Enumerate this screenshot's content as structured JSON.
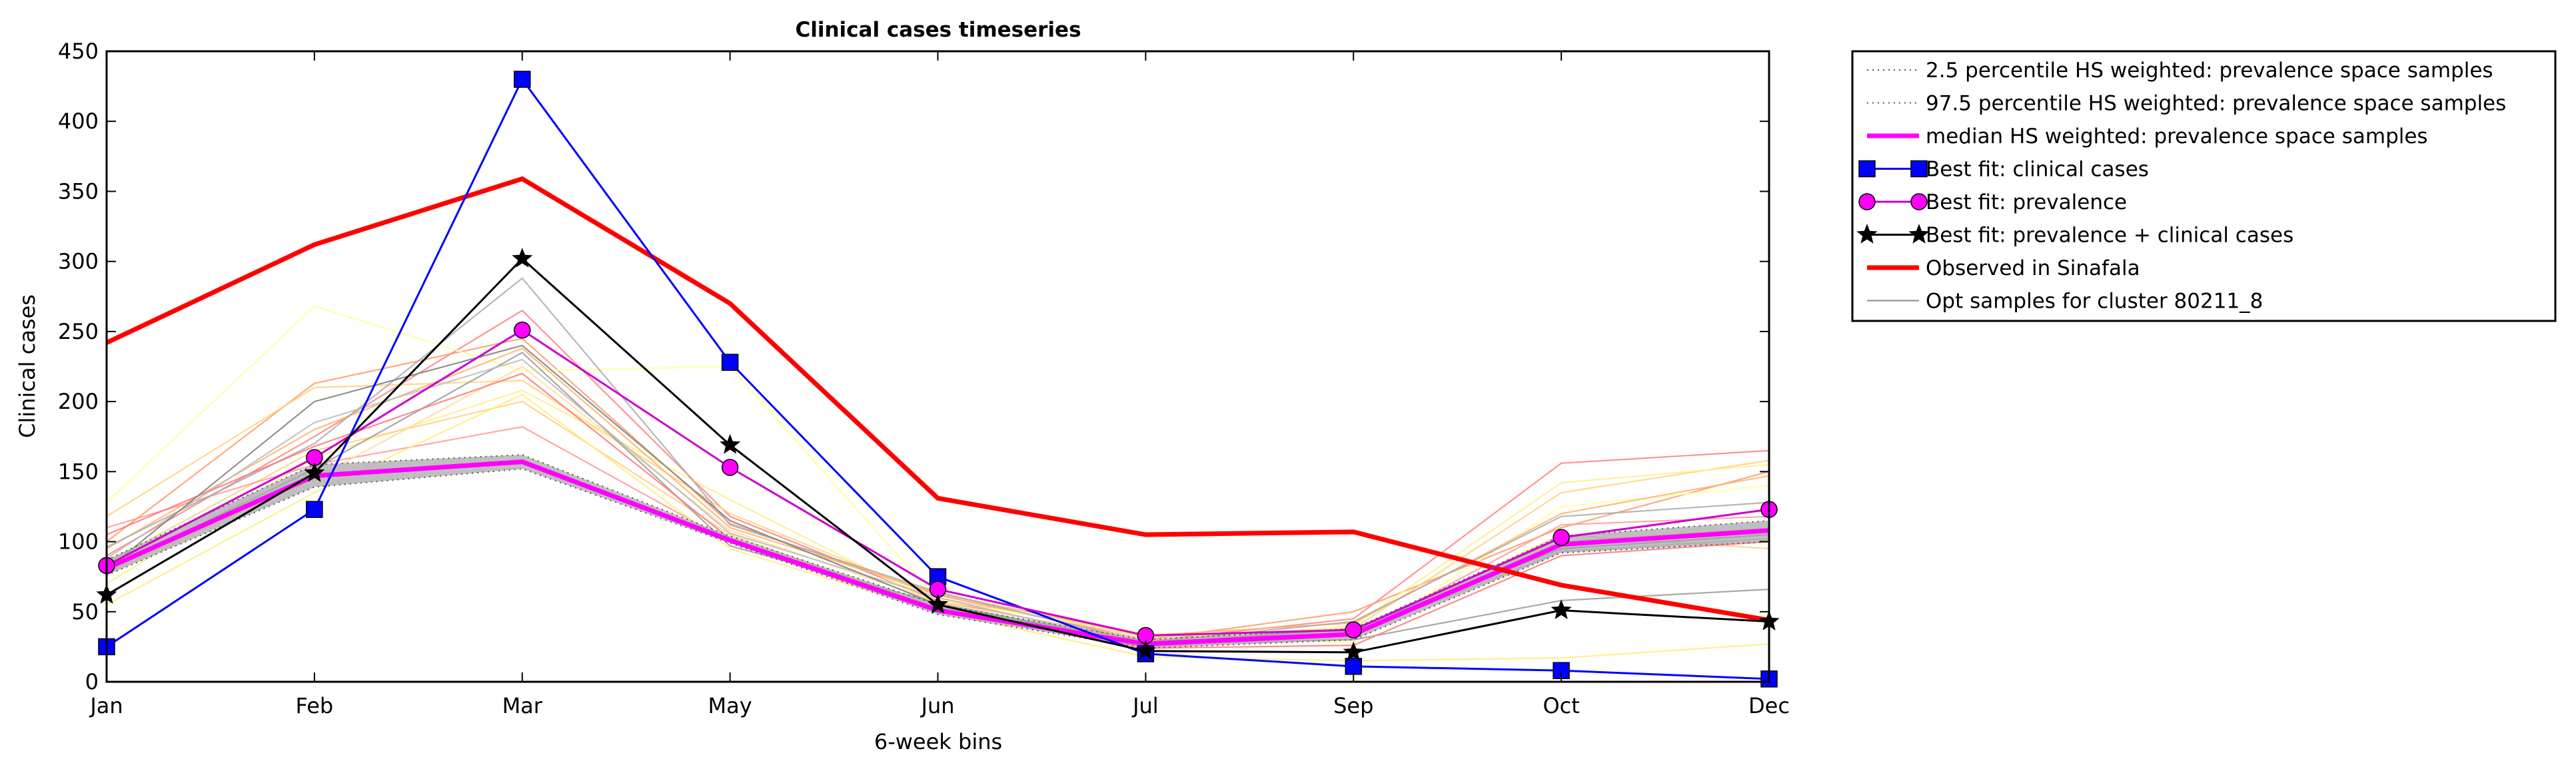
{
  "chart_data": {
    "type": "line",
    "title": "Clinical cases timeseries",
    "xlabel": "6-week bins",
    "ylabel": "Clinical cases",
    "categories": [
      "Jan",
      "Feb",
      "Mar",
      "May",
      "Jun",
      "Jul",
      "Sep",
      "Oct",
      "Dec"
    ],
    "ylim": [
      0,
      450
    ],
    "yticks": [
      0,
      50,
      100,
      150,
      200,
      250,
      300,
      350,
      400,
      450
    ],
    "grid": false,
    "legend_position": "outside-right",
    "series": [
      {
        "name": "2.5 percentile HS weighted: prevalence space samples",
        "color": "#555555",
        "style": "dotted",
        "values": [
          76,
          139,
          152,
          99,
          48,
          24,
          30,
          92,
          100
        ]
      },
      {
        "name": "97.5 percentile HS weighted: prevalence space samples",
        "color": "#555555",
        "style": "dotted",
        "values": [
          87,
          155,
          162,
          104,
          55,
          30,
          38,
          104,
          115
        ]
      },
      {
        "name": "median HS weighted: prevalence space samples",
        "color": "#ff00ff",
        "style": "solid",
        "values": [
          81,
          147,
          157,
          101,
          51,
          27,
          34,
          98,
          108
        ]
      },
      {
        "name": "Best fit: clinical cases",
        "color": "#0000ff",
        "style": "solid",
        "marker": "square",
        "values": [
          25,
          123,
          430,
          228,
          75,
          20,
          11,
          8,
          2
        ]
      },
      {
        "name": "Best fit: prevalence",
        "color": "#cc00cc",
        "style": "solid",
        "marker": "circle",
        "values": [
          83,
          160,
          251,
          153,
          66,
          33,
          37,
          103,
          123
        ]
      },
      {
        "name": "Best fit: prevalence + clinical cases",
        "color": "#000000",
        "style": "solid",
        "marker": "star",
        "values": [
          62,
          149,
          302,
          169,
          55,
          22,
          21,
          51,
          43
        ]
      },
      {
        "name": "Observed in Sinafala",
        "color": "#ff0000",
        "style": "solid",
        "values": [
          242,
          312,
          359,
          270,
          131,
          105,
          107,
          69,
          44
        ]
      },
      {
        "name": "Opt samples for cluster 80211_8",
        "color": "#888888",
        "style": "solid",
        "values": [
          80,
          200,
          240,
          115,
          55,
          27,
          38,
          95,
          105
        ]
      }
    ],
    "sample_lines": [
      {
        "color": "#ff8080",
        "values": [
          90,
          175,
          265,
          118,
          58,
          29,
          45,
          156,
          165
        ]
      },
      {
        "color": "#ff9966",
        "values": [
          100,
          213,
          245,
          113,
          62,
          30,
          50,
          110,
          150
        ]
      },
      {
        "color": "#ffd27a",
        "values": [
          118,
          210,
          215,
          120,
          60,
          32,
          38,
          135,
          158
        ]
      },
      {
        "color": "#ffff99",
        "values": [
          128,
          268,
          222,
          225,
          58,
          35,
          28,
          125,
          140
        ]
      },
      {
        "color": "#ffee88",
        "values": [
          70,
          160,
          208,
          130,
          55,
          28,
          40,
          142,
          155
        ]
      },
      {
        "color": "#ffb366",
        "values": [
          95,
          180,
          238,
          110,
          63,
          33,
          42,
          120,
          147
        ]
      },
      {
        "color": "#ffcc88",
        "values": [
          85,
          165,
          200,
          105,
          52,
          27,
          35,
          105,
          95
        ]
      },
      {
        "color": "#ff9999",
        "values": [
          110,
          155,
          182,
          100,
          50,
          25,
          33,
          112,
          118
        ]
      },
      {
        "color": "#ffdd99",
        "values": [
          78,
          145,
          225,
          108,
          57,
          30,
          36,
          100,
          110
        ]
      },
      {
        "color": "#aaaaaa",
        "values": [
          96,
          170,
          288,
          112,
          64,
          28,
          43,
          118,
          128
        ]
      },
      {
        "color": "#999999",
        "values": [
          80,
          152,
          235,
          97,
          56,
          27,
          30,
          58,
          66
        ]
      },
      {
        "color": "#bbbbbb",
        "values": [
          88,
          185,
          230,
          106,
          60,
          26,
          34,
          93,
          102
        ]
      },
      {
        "color": "#ffee77",
        "values": [
          55,
          135,
          205,
          95,
          50,
          18,
          15,
          17,
          27
        ]
      },
      {
        "color": "#ff7777",
        "values": [
          105,
          168,
          220,
          102,
          53,
          24,
          26,
          90,
          100
        ]
      }
    ]
  }
}
